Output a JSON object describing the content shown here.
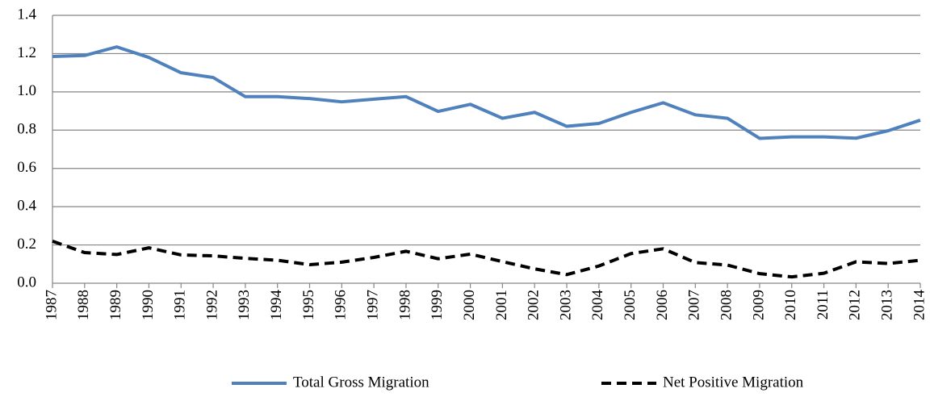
{
  "chart_data": {
    "type": "line",
    "categories": [
      "1987",
      "1988",
      "1989",
      "1990",
      "1991",
      "1992",
      "1993",
      "1994",
      "1995",
      "1996",
      "1997",
      "1998",
      "1999",
      "2000",
      "2001",
      "2002",
      "2003",
      "2004",
      "2005",
      "2006",
      "2007",
      "2008",
      "2009",
      "2010",
      "2011",
      "2012",
      "2013",
      "2014"
    ],
    "series": [
      {
        "name": "Total Gross Migration",
        "color": "#4f81bd",
        "style": "solid",
        "values": [
          1.185,
          1.19,
          1.235,
          1.18,
          1.1,
          1.075,
          0.975,
          0.975,
          0.965,
          0.948,
          0.962,
          0.975,
          0.898,
          0.935,
          0.862,
          0.893,
          0.82,
          0.835,
          0.893,
          0.943,
          0.88,
          0.862,
          0.757,
          0.765,
          0.765,
          0.758,
          0.797,
          0.852
        ]
      },
      {
        "name": "Net Positive Migration",
        "color": "#000000",
        "style": "dashed",
        "values": [
          0.22,
          0.16,
          0.15,
          0.185,
          0.148,
          0.143,
          0.13,
          0.12,
          0.097,
          0.11,
          0.135,
          0.167,
          0.128,
          0.152,
          0.113,
          0.075,
          0.045,
          0.09,
          0.155,
          0.18,
          0.108,
          0.095,
          0.05,
          0.033,
          0.052,
          0.112,
          0.103,
          0.12
        ]
      }
    ],
    "ylim": [
      0,
      1.4
    ],
    "yticks": [
      {
        "value": 0,
        "label": "0.0"
      },
      0.2,
      0.4,
      0.6,
      0.8,
      {
        "value": 1,
        "label": "1.0"
      },
      1.2,
      1.4
    ],
    "grid": true,
    "legend": "bottom"
  }
}
